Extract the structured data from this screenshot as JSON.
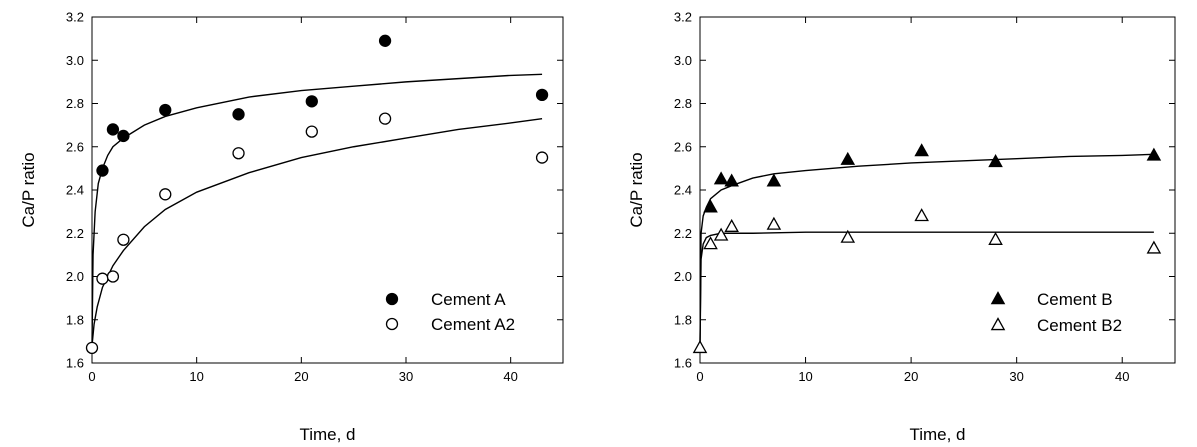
{
  "chart_data": [
    {
      "type": "scatter",
      "title": "",
      "xlabel": "Time, d",
      "ylabel": "Ca/P ratio",
      "xlim": [
        0,
        45
      ],
      "ylim": [
        1.6,
        3.2
      ],
      "xticks": [
        0,
        10,
        20,
        30,
        40
      ],
      "yticks": [
        1.6,
        1.8,
        2.0,
        2.2,
        2.4,
        2.6,
        2.8,
        3.0,
        3.2
      ],
      "tick_decimals": 1,
      "grid": false,
      "legend_position": "bottom-right",
      "series": [
        {
          "name": "Cement A",
          "marker": "filled-circle",
          "x": [
            1,
            2,
            3,
            7,
            14,
            21,
            28,
            43
          ],
          "y": [
            2.49,
            2.68,
            2.65,
            2.77,
            2.75,
            2.81,
            3.09,
            2.84
          ],
          "fit": {
            "x": [
              0,
              0.1,
              0.3,
              0.6,
              1,
              1.5,
              2,
              3,
              5,
              7,
              10,
              15,
              20,
              25,
              30,
              35,
              40,
              43
            ],
            "y": [
              1.68,
              2.1,
              2.3,
              2.43,
              2.5,
              2.56,
              2.6,
              2.64,
              2.7,
              2.74,
              2.78,
              2.83,
              2.86,
              2.88,
              2.9,
              2.915,
              2.93,
              2.935
            ]
          }
        },
        {
          "name": "Cement A2",
          "marker": "open-circle",
          "x": [
            0,
            1,
            2,
            3,
            7,
            14,
            21,
            28,
            43
          ],
          "y": [
            1.67,
            1.99,
            2.0,
            2.17,
            2.38,
            2.57,
            2.67,
            2.73,
            2.55
          ],
          "fit": {
            "x": [
              0,
              0.2,
              0.5,
              1,
              1.5,
              2,
              3,
              5,
              7,
              10,
              15,
              20,
              25,
              30,
              35,
              40,
              43
            ],
            "y": [
              1.68,
              1.78,
              1.86,
              1.95,
              2.0,
              2.05,
              2.12,
              2.23,
              2.31,
              2.39,
              2.48,
              2.55,
              2.6,
              2.64,
              2.68,
              2.71,
              2.73
            ]
          }
        }
      ]
    },
    {
      "type": "scatter",
      "title": "",
      "xlabel": "Time, d",
      "ylabel": "Ca/P ratio",
      "xlim": [
        0,
        45
      ],
      "ylim": [
        1.6,
        3.2
      ],
      "xticks": [
        0,
        10,
        20,
        30,
        40
      ],
      "yticks": [
        1.6,
        1.8,
        2.0,
        2.2,
        2.4,
        2.6,
        2.8,
        3.0,
        3.2
      ],
      "tick_decimals": 1,
      "grid": false,
      "legend_position": "bottom-right",
      "series": [
        {
          "name": "Cement B",
          "marker": "filled-triangle",
          "x": [
            1,
            2,
            3,
            7,
            14,
            21,
            28,
            43
          ],
          "y": [
            2.32,
            2.45,
            2.44,
            2.44,
            2.54,
            2.58,
            2.53,
            2.56
          ],
          "fit": {
            "x": [
              0,
              0.1,
              0.3,
              0.6,
              1,
              2,
              3,
              5,
              7,
              10,
              15,
              20,
              25,
              30,
              35,
              40,
              43
            ],
            "y": [
              1.68,
              2.2,
              2.28,
              2.32,
              2.36,
              2.4,
              2.42,
              2.455,
              2.475,
              2.49,
              2.51,
              2.525,
              2.535,
              2.545,
              2.555,
              2.56,
              2.565
            ]
          }
        },
        {
          "name": "Cement B2",
          "marker": "open-triangle",
          "x": [
            0,
            1,
            2,
            3,
            7,
            14,
            21,
            28,
            43
          ],
          "y": [
            1.67,
            2.15,
            2.19,
            2.23,
            2.24,
            2.18,
            2.28,
            2.17,
            2.13
          ],
          "fit": {
            "x": [
              0,
              0.1,
              0.3,
              0.6,
              1,
              2,
              3,
              5,
              10,
              20,
              43
            ],
            "y": [
              1.68,
              2.08,
              2.15,
              2.18,
              2.19,
              2.2,
              2.2,
              2.2,
              2.205,
              2.205,
              2.205
            ]
          }
        }
      ]
    }
  ]
}
